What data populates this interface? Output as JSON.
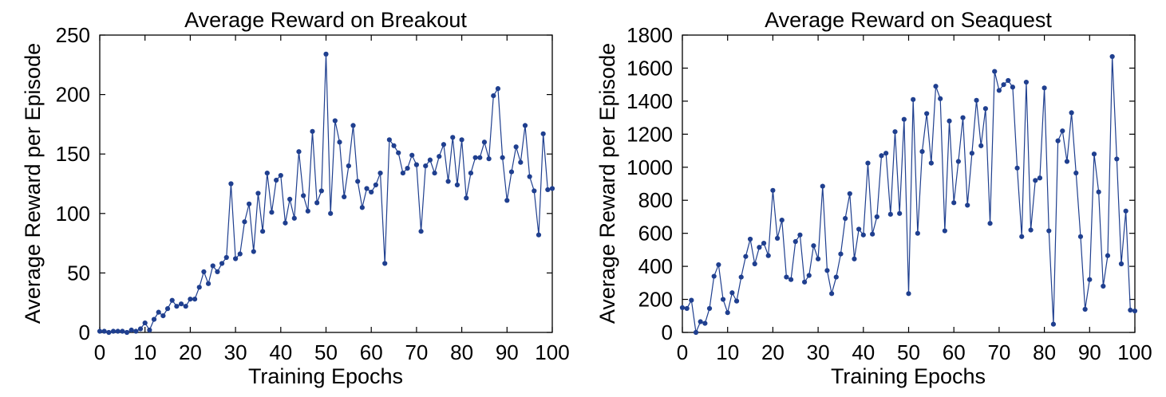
{
  "chart_data": [
    {
      "type": "line",
      "title": "Average Reward on Breakout",
      "xlabel": "Training Epochs",
      "ylabel": "Average Reward per Episode",
      "xlim": [
        0,
        100
      ],
      "ylim": [
        0,
        250
      ],
      "xticks": [
        0,
        10,
        20,
        30,
        40,
        50,
        60,
        70,
        80,
        90,
        100
      ],
      "yticks": [
        0,
        50,
        100,
        150,
        200,
        250
      ],
      "grid": false,
      "legend": "none",
      "color": "#1f3f8f",
      "x": [
        0,
        1,
        2,
        3,
        4,
        5,
        6,
        7,
        8,
        9,
        10,
        11,
        12,
        13,
        14,
        15,
        16,
        17,
        18,
        19,
        20,
        21,
        22,
        23,
        24,
        25,
        26,
        27,
        28,
        29,
        30,
        31,
        32,
        33,
        34,
        35,
        36,
        37,
        38,
        39,
        40,
        41,
        42,
        43,
        44,
        45,
        46,
        47,
        48,
        49,
        50,
        51,
        52,
        53,
        54,
        55,
        56,
        57,
        58,
        59,
        60,
        61,
        62,
        63,
        64,
        65,
        66,
        67,
        68,
        69,
        70,
        71,
        72,
        73,
        74,
        75,
        76,
        77,
        78,
        79,
        80,
        81,
        82,
        83,
        84,
        85,
        86,
        87,
        88,
        89,
        90,
        91,
        92,
        93,
        94,
        95,
        96,
        97,
        98,
        99,
        100
      ],
      "y": [
        1,
        1,
        0,
        1,
        1,
        1,
        0,
        2,
        1,
        3,
        8,
        2,
        11,
        17,
        14,
        20,
        27,
        22,
        24,
        22,
        28,
        28,
        38,
        51,
        41,
        56,
        51,
        58,
        63,
        125,
        62,
        66,
        93,
        108,
        68,
        117,
        85,
        134,
        101,
        128,
        132,
        92,
        112,
        96,
        152,
        115,
        102,
        169,
        109,
        119,
        234,
        100,
        178,
        160,
        114,
        140,
        174,
        127,
        105,
        121,
        118,
        124,
        134,
        58,
        162,
        157,
        151,
        134,
        138,
        149,
        141,
        85,
        140,
        145,
        134,
        148,
        158,
        127,
        164,
        124,
        162,
        113,
        134,
        147,
        147,
        160,
        146,
        199,
        205,
        147,
        111,
        135,
        156,
        143,
        174,
        131,
        119,
        82,
        167,
        120,
        121
      ]
    },
    {
      "type": "line",
      "title": "Average Reward on Seaquest",
      "xlabel": "Training Epochs",
      "ylabel": "Average Reward per Episode",
      "xlim": [
        0,
        100
      ],
      "ylim": [
        0,
        1800
      ],
      "xticks": [
        0,
        10,
        20,
        30,
        40,
        50,
        60,
        70,
        80,
        90,
        100
      ],
      "yticks": [
        0,
        200,
        400,
        600,
        800,
        1000,
        1200,
        1400,
        1600,
        1800
      ],
      "grid": false,
      "legend": "none",
      "color": "#1f3f8f",
      "x": [
        0,
        1,
        2,
        3,
        4,
        5,
        6,
        7,
        8,
        9,
        10,
        11,
        12,
        13,
        14,
        15,
        16,
        17,
        18,
        19,
        20,
        21,
        22,
        23,
        24,
        25,
        26,
        27,
        28,
        29,
        30,
        31,
        32,
        33,
        34,
        35,
        36,
        37,
        38,
        39,
        40,
        41,
        42,
        43,
        44,
        45,
        46,
        47,
        48,
        49,
        50,
        51,
        52,
        53,
        54,
        55,
        56,
        57,
        58,
        59,
        60,
        61,
        62,
        63,
        64,
        65,
        66,
        67,
        68,
        69,
        70,
        71,
        72,
        73,
        74,
        75,
        76,
        77,
        78,
        79,
        80,
        81,
        82,
        83,
        84,
        85,
        86,
        87,
        88,
        89,
        90,
        91,
        92,
        93,
        94,
        95,
        96,
        97,
        98,
        99,
        100
      ],
      "y": [
        150,
        145,
        195,
        0,
        65,
        55,
        145,
        340,
        410,
        200,
        120,
        240,
        190,
        335,
        460,
        565,
        415,
        515,
        540,
        465,
        860,
        570,
        680,
        335,
        320,
        550,
        590,
        305,
        345,
        525,
        445,
        885,
        375,
        235,
        335,
        475,
        690,
        840,
        445,
        625,
        590,
        1025,
        595,
        700,
        1070,
        1085,
        715,
        1215,
        720,
        1290,
        235,
        1410,
        600,
        1095,
        1325,
        1025,
        1490,
        1415,
        615,
        1280,
        785,
        1035,
        1300,
        770,
        1085,
        1405,
        1130,
        1355,
        660,
        1580,
        1465,
        1500,
        1525,
        1485,
        995,
        580,
        1515,
        620,
        920,
        935,
        1480,
        615,
        50,
        1160,
        1220,
        1035,
        1330,
        965,
        580,
        140,
        320,
        1080,
        850,
        280,
        465,
        1670,
        1050,
        415,
        735,
        135,
        130
      ]
    }
  ]
}
